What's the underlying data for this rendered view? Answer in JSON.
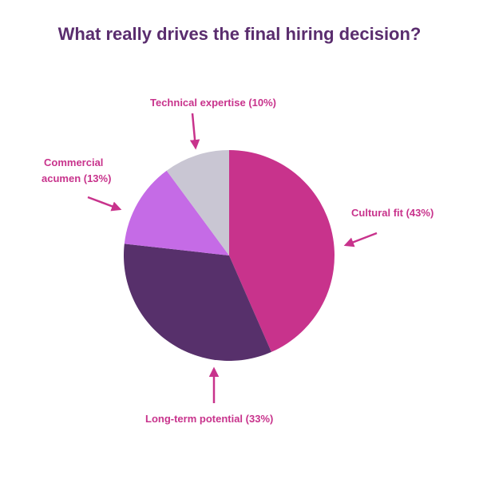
{
  "chart_data": {
    "type": "pie",
    "title": "What really drives the final hiring decision?",
    "slices": [
      {
        "label": "Cultural fit (43%)",
        "value": 43,
        "color": "#c8338c"
      },
      {
        "label": "Long-term potential (33%)",
        "value": 33,
        "color": "#57306b"
      },
      {
        "label": "Commercial acumen (13%)",
        "value": 13,
        "color": "#c56be6"
      },
      {
        "label": "Technical expertise (10%)",
        "value": 10,
        "color": "#c9c6d3"
      }
    ],
    "label_color": "#c8338c",
    "start_angle": "12 o'clock",
    "direction": "clockwise"
  }
}
